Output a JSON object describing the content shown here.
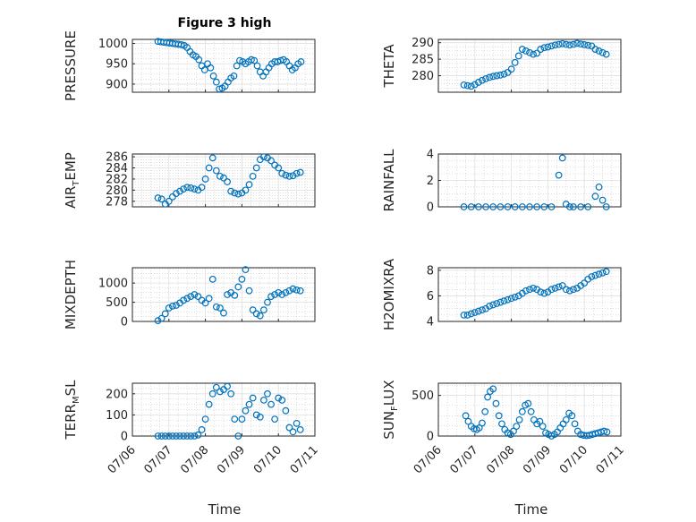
{
  "figure": {
    "title": "Figure 3 high",
    "xlabel": "Time",
    "x_tick_labels": [
      "07/06",
      "07/07",
      "07/08",
      "07/09",
      "07/10",
      "07/11"
    ]
  },
  "colors": {
    "marker": "#0072bd",
    "axis": "#262626",
    "grid": "#dfdfdf"
  },
  "chart_data": [
    {
      "type": "scatter",
      "ylabel": "PRESSURE",
      "ylim": [
        880,
        1010
      ],
      "yticks": [
        900,
        950,
        1000
      ],
      "xlim": [
        0,
        5
      ],
      "x_unit": "days since 07/06",
      "x": [
        0.7,
        0.78,
        0.86,
        0.94,
        1.02,
        1.1,
        1.18,
        1.26,
        1.34,
        1.42,
        1.5,
        1.58,
        1.66,
        1.74,
        1.82,
        1.9,
        1.98,
        2.06,
        2.14,
        2.22,
        2.3,
        2.38,
        2.46,
        2.54,
        2.62,
        2.7,
        2.78,
        2.86,
        2.94,
        3.02,
        3.1,
        3.18,
        3.26,
        3.34,
        3.42,
        3.5,
        3.58,
        3.66,
        3.74,
        3.82,
        3.9,
        3.98,
        4.06,
        4.14,
        4.22,
        4.3,
        4.38,
        4.46,
        4.54,
        4.62
      ],
      "y": [
        1005,
        1004,
        1003,
        1002,
        1001,
        1000,
        999,
        998,
        997,
        995,
        990,
        980,
        972,
        968,
        960,
        945,
        935,
        950,
        940,
        920,
        905,
        888,
        890,
        895,
        905,
        915,
        920,
        945,
        958,
        955,
        950,
        955,
        960,
        958,
        945,
        930,
        920,
        930,
        940,
        950,
        955,
        955,
        958,
        960,
        955,
        945,
        935,
        940,
        950,
        955
      ]
    },
    {
      "type": "scatter",
      "ylabel": "THETA",
      "ylim": [
        275,
        291
      ],
      "yticks": [
        280,
        285,
        290
      ],
      "xlim": [
        0,
        5
      ],
      "x_unit": "days since 07/06",
      "x": [
        0.7,
        0.8,
        0.9,
        1.0,
        1.1,
        1.2,
        1.3,
        1.4,
        1.5,
        1.6,
        1.7,
        1.8,
        1.9,
        2.0,
        2.1,
        2.2,
        2.3,
        2.4,
        2.5,
        2.6,
        2.7,
        2.8,
        2.9,
        3.0,
        3.1,
        3.2,
        3.3,
        3.4,
        3.5,
        3.6,
        3.7,
        3.8,
        3.9,
        4.0,
        4.1,
        4.2,
        4.3,
        4.4,
        4.5,
        4.6
      ],
      "y": [
        277.2,
        277,
        276.8,
        277.3,
        278,
        278.6,
        279.1,
        279.5,
        279.8,
        280,
        280.2,
        280.5,
        281,
        282,
        284,
        286,
        288,
        287.5,
        287,
        286.5,
        286.8,
        288,
        288.5,
        288.7,
        289,
        289.3,
        289.5,
        289.7,
        289.5,
        289.3,
        289.5,
        289.8,
        289.6,
        289.4,
        289.2,
        289,
        288,
        287.5,
        287,
        286.5
      ]
    },
    {
      "type": "scatter",
      "ylabel_main": "AIR",
      "ylabel_sub": "T",
      "ylabel_rest": "EMP",
      "ylim": [
        277,
        286.5
      ],
      "yticks": [
        278,
        280,
        282,
        284,
        286
      ],
      "xlim": [
        0,
        5
      ],
      "x_unit": "days since 07/06",
      "x": [
        0.7,
        0.8,
        0.9,
        1.0,
        1.1,
        1.2,
        1.3,
        1.4,
        1.5,
        1.6,
        1.7,
        1.8,
        1.9,
        2.0,
        2.1,
        2.2,
        2.3,
        2.4,
        2.5,
        2.6,
        2.7,
        2.8,
        2.9,
        3.0,
        3.1,
        3.2,
        3.3,
        3.4,
        3.5,
        3.6,
        3.7,
        3.8,
        3.9,
        4.0,
        4.1,
        4.2,
        4.3,
        4.4,
        4.5,
        4.6
      ],
      "y": [
        278.6,
        278.4,
        277.5,
        278,
        278.8,
        279.4,
        279.8,
        280.2,
        280.5,
        280.4,
        280.2,
        280,
        280.5,
        282,
        284,
        285.8,
        283.5,
        282.5,
        282.2,
        281.5,
        279.8,
        279.5,
        279.3,
        279.5,
        280,
        281,
        282.5,
        284,
        285.5,
        286,
        285.8,
        285.3,
        284.5,
        284,
        283,
        282.7,
        282.5,
        282.6,
        283,
        283.2
      ]
    },
    {
      "type": "scatter",
      "ylabel": "RAINFALL",
      "ylim": [
        0,
        4
      ],
      "yticks": [
        0,
        2,
        4
      ],
      "xlim": [
        0,
        5
      ],
      "x_unit": "days since 07/06",
      "x": [
        0.7,
        0.9,
        1.1,
        1.3,
        1.5,
        1.7,
        1.9,
        2.1,
        2.3,
        2.5,
        2.7,
        2.9,
        3.1,
        3.3,
        3.4,
        3.5,
        3.6,
        3.7,
        3.9,
        4.1,
        4.3,
        4.4,
        4.5,
        4.6
      ],
      "y": [
        0,
        0,
        0,
        0,
        0,
        0,
        0,
        0,
        0,
        0,
        0,
        0,
        0,
        2.4,
        3.7,
        0.2,
        0,
        0,
        0,
        0,
        0.8,
        1.5,
        0.5,
        0
      ]
    },
    {
      "type": "scatter",
      "ylabel": "MIXDEPTH",
      "ylim": [
        0,
        1400
      ],
      "yticks": [
        0,
        500,
        1000
      ],
      "xlim": [
        0,
        5
      ],
      "x_unit": "days since 07/06",
      "x": [
        0.7,
        0.8,
        0.9,
        1.0,
        1.1,
        1.2,
        1.3,
        1.4,
        1.5,
        1.6,
        1.7,
        1.8,
        1.9,
        2.0,
        2.1,
        2.2,
        2.3,
        2.4,
        2.5,
        2.6,
        2.7,
        2.8,
        2.9,
        3.0,
        3.1,
        3.2,
        3.3,
        3.4,
        3.5,
        3.6,
        3.7,
        3.8,
        3.9,
        4.0,
        4.1,
        4.2,
        4.3,
        4.4,
        4.5,
        4.6
      ],
      "y": [
        20,
        80,
        200,
        350,
        400,
        420,
        480,
        550,
        600,
        650,
        700,
        650,
        550,
        480,
        600,
        1100,
        380,
        350,
        220,
        700,
        750,
        680,
        900,
        1100,
        1350,
        800,
        300,
        200,
        150,
        300,
        500,
        650,
        700,
        750,
        700,
        750,
        800,
        850,
        820,
        800
      ]
    },
    {
      "type": "scatter",
      "ylabel": "H2OMIXRA",
      "ylim": [
        4,
        8.2
      ],
      "yticks": [
        4,
        6,
        8
      ],
      "xlim": [
        0,
        5
      ],
      "x_unit": "days since 07/06",
      "x": [
        0.7,
        0.8,
        0.9,
        1.0,
        1.1,
        1.2,
        1.3,
        1.4,
        1.5,
        1.6,
        1.7,
        1.8,
        1.9,
        2.0,
        2.1,
        2.2,
        2.3,
        2.4,
        2.5,
        2.6,
        2.7,
        2.8,
        2.9,
        3.0,
        3.1,
        3.2,
        3.3,
        3.4,
        3.5,
        3.6,
        3.7,
        3.8,
        3.9,
        4.0,
        4.1,
        4.2,
        4.3,
        4.4,
        4.5,
        4.6
      ],
      "y": [
        4.5,
        4.5,
        4.6,
        4.7,
        4.8,
        4.9,
        5.0,
        5.2,
        5.3,
        5.4,
        5.5,
        5.6,
        5.7,
        5.8,
        5.9,
        6.0,
        6.2,
        6.4,
        6.5,
        6.6,
        6.5,
        6.3,
        6.2,
        6.3,
        6.5,
        6.6,
        6.7,
        6.8,
        6.5,
        6.4,
        6.5,
        6.6,
        6.8,
        7.0,
        7.3,
        7.5,
        7.6,
        7.7,
        7.8,
        7.9
      ]
    },
    {
      "type": "scatter",
      "ylabel_main": "TERR",
      "ylabel_sub": "M",
      "ylabel_rest": "SL",
      "ylim": [
        0,
        250
      ],
      "yticks": [
        0,
        100,
        200
      ],
      "xlim": [
        0,
        5
      ],
      "x_unit": "days since 07/06",
      "x": [
        0.7,
        0.8,
        0.9,
        1.0,
        1.1,
        1.2,
        1.3,
        1.4,
        1.5,
        1.6,
        1.7,
        1.8,
        1.9,
        2.0,
        2.1,
        2.2,
        2.3,
        2.4,
        2.5,
        2.6,
        2.7,
        2.8,
        2.9,
        3.0,
        3.1,
        3.2,
        3.3,
        3.4,
        3.5,
        3.6,
        3.7,
        3.8,
        3.9,
        4.0,
        4.1,
        4.2,
        4.3,
        4.4,
        4.5,
        4.6
      ],
      "y": [
        0,
        0,
        0,
        0,
        0,
        0,
        0,
        0,
        0,
        0,
        0,
        5,
        30,
        80,
        150,
        200,
        230,
        210,
        220,
        235,
        200,
        80,
        0,
        80,
        120,
        150,
        180,
        100,
        90,
        170,
        200,
        150,
        80,
        180,
        170,
        120,
        40,
        20,
        60,
        30
      ]
    },
    {
      "type": "scatter",
      "ylabel_main": "SUN",
      "ylabel_sub": "F",
      "ylabel_rest": "LUX",
      "ylim": [
        0,
        650
      ],
      "yticks": [
        0,
        500
      ],
      "xlim": [
        0,
        5
      ],
      "x_unit": "days since 07/06",
      "x": [
        0.75,
        0.82,
        0.9,
        0.98,
        1.05,
        1.12,
        1.2,
        1.28,
        1.35,
        1.42,
        1.5,
        1.58,
        1.66,
        1.74,
        1.82,
        1.9,
        1.98,
        2.06,
        2.14,
        2.22,
        2.3,
        2.38,
        2.46,
        2.54,
        2.62,
        2.7,
        2.78,
        2.86,
        2.94,
        3.02,
        3.1,
        3.18,
        3.26,
        3.34,
        3.42,
        3.5,
        3.58,
        3.66,
        3.74,
        3.82,
        3.9,
        3.98,
        4.06,
        4.14,
        4.22,
        4.3,
        4.38,
        4.46,
        4.54,
        4.62
      ],
      "y": [
        250,
        180,
        120,
        90,
        80,
        100,
        160,
        300,
        480,
        550,
        580,
        400,
        250,
        150,
        80,
        40,
        20,
        60,
        120,
        200,
        300,
        380,
        400,
        300,
        200,
        150,
        180,
        120,
        40,
        20,
        0,
        20,
        50,
        100,
        150,
        200,
        280,
        250,
        150,
        60,
        20,
        10,
        5,
        10,
        20,
        30,
        40,
        50,
        60,
        50
      ]
    }
  ]
}
